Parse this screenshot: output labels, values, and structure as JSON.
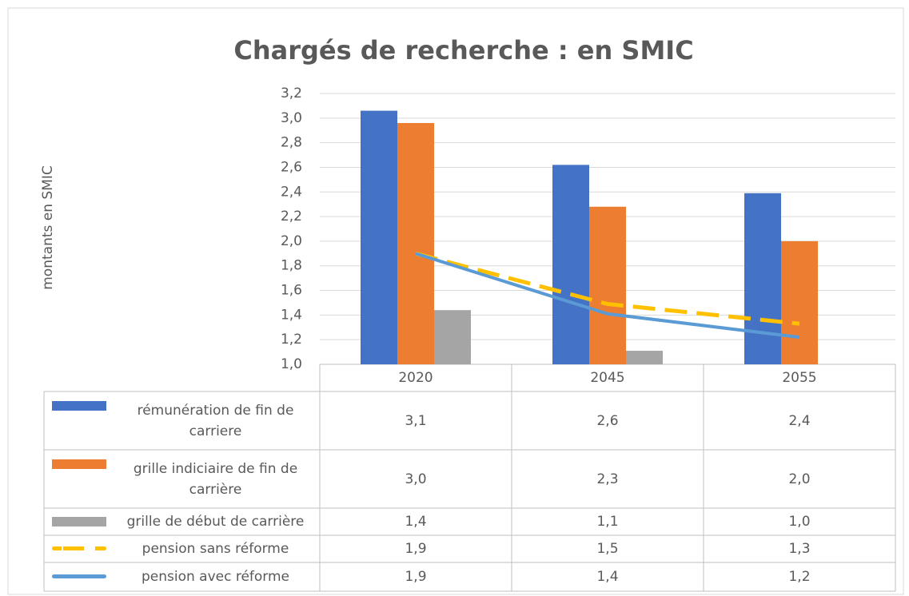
{
  "chart_data": {
    "type": "bar",
    "title": "Chargés de recherche : en SMIC",
    "y_label": "montants en SMIC",
    "categories": [
      "2020",
      "2045",
      "2055"
    ],
    "ylim": [
      1.0,
      3.2
    ],
    "yticks": [
      {
        "value": 1.0,
        "label": "1,0"
      },
      {
        "value": 1.2,
        "label": "1,2"
      },
      {
        "value": 1.4,
        "label": "1,4"
      },
      {
        "value": 1.6,
        "label": "1,6"
      },
      {
        "value": 1.8,
        "label": "1,8"
      },
      {
        "value": 2.0,
        "label": "2,0"
      },
      {
        "value": 2.2,
        "label": "2,2"
      },
      {
        "value": 2.4,
        "label": "2,4"
      },
      {
        "value": 2.6,
        "label": "2,6"
      },
      {
        "value": 2.8,
        "label": "2,8"
      },
      {
        "value": 3.0,
        "label": "3,0"
      },
      {
        "value": 3.2,
        "label": "3,2"
      }
    ],
    "grid": true,
    "series": [
      {
        "name": "rémunération de fin de carriere",
        "type": "bar",
        "color": "#4472c4",
        "values": [
          3.06,
          2.62,
          2.39
        ],
        "value_labels": [
          "3,1",
          "2,6",
          "2,4"
        ]
      },
      {
        "name": "grille indiciaire de fin de carrière",
        "type": "bar",
        "color": "#ed7d31",
        "values": [
          2.96,
          2.28,
          2.0
        ],
        "value_labels": [
          "3,0",
          "2,3",
          "2,0"
        ]
      },
      {
        "name": "grille de début de carrière",
        "type": "bar",
        "color": "#a5a5a5",
        "values": [
          1.44,
          1.11,
          1.0
        ],
        "value_labels": [
          "1,4",
          "1,1",
          "1,0"
        ]
      },
      {
        "name": "pension sans réforme",
        "type": "line",
        "line_style": "dashed",
        "color": "#ffc000",
        "values": [
          1.9,
          1.49,
          1.33
        ],
        "value_labels": [
          "1,9",
          "1,5",
          "1,3"
        ]
      },
      {
        "name": "pension avec réforme",
        "type": "line",
        "line_style": "solid",
        "color": "#5b9bd5",
        "values": [
          1.9,
          1.41,
          1.22
        ],
        "value_labels": [
          "1,9",
          "1,4",
          "1,2"
        ]
      }
    ]
  }
}
